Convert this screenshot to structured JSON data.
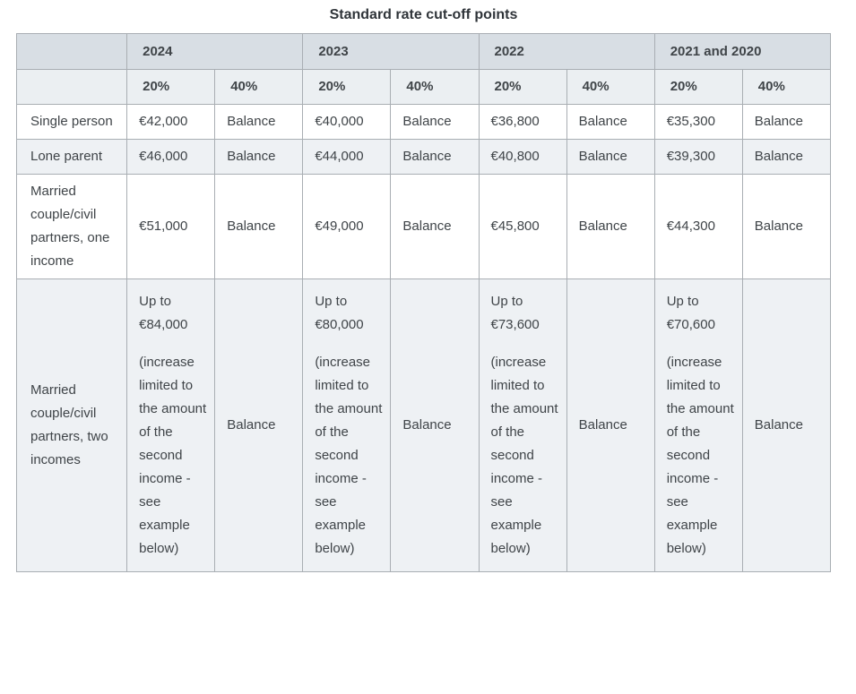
{
  "title": "Standard rate cut-off points",
  "colors": {
    "year_header_bg": "#d8dee4",
    "rate_header_bg": "#ebeff2",
    "row_alt_bg": "#eef1f4",
    "border": "#a9aeb3",
    "text": "#3f4448"
  },
  "table": {
    "year_headers": [
      "2024",
      "2023",
      "2022",
      "2021 and 2020"
    ],
    "rate_headers": [
      "20%",
      "40%"
    ],
    "rows": [
      {
        "label": "Single person",
        "cells": [
          "€42,000",
          "Balance",
          "€40,000",
          "Balance",
          "€36,800",
          "Balance",
          "€35,300",
          "Balance"
        ]
      },
      {
        "label": "Lone parent",
        "cells": [
          "€46,000",
          "Balance",
          "€44,000",
          "Balance",
          "€40,800",
          "Balance",
          "€39,300",
          "Balance"
        ]
      },
      {
        "label": "Married couple/civil partners, one income",
        "cells": [
          "€51,000",
          "Balance",
          "€49,000",
          "Balance",
          "€45,800",
          "Balance",
          "€44,300",
          "Balance"
        ]
      },
      {
        "label": "Married couple/civil partners, two incomes",
        "cells": [
          {
            "p1": "Up to €84,000",
            "p2": "(increase limited to the amount of the second income - see example below)"
          },
          {
            "p1": "Balance"
          },
          {
            "p1": "Up to €80,000",
            "p2": "(increase limited to the amount of the second income - see example below)"
          },
          {
            "p1": "Balance"
          },
          {
            "p1": "Up to €73,600",
            "p2": "(increase limited to the amount of the second income - see example below)"
          },
          {
            "p1": "Balance"
          },
          {
            "p1": "Up to €70,600",
            "p2": "(increase limited to the amount of the second income - see example below)"
          },
          {
            "p1": "Balance"
          }
        ]
      }
    ]
  }
}
